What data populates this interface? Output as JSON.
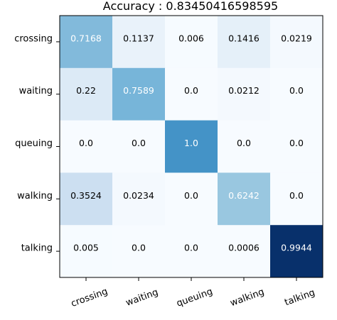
{
  "chart_data": {
    "type": "heatmap",
    "title": "Accuracy :  0.83450416598595",
    "xlabel": "",
    "ylabel": "",
    "rows": [
      "crossing",
      "waiting",
      "queuing",
      "walking",
      "talking"
    ],
    "columns": [
      "crossing",
      "waiting",
      "queuing",
      "walking",
      "talking"
    ],
    "values": [
      [
        0.7168,
        0.1137,
        0.006,
        0.1416,
        0.0219
      ],
      [
        0.22,
        0.7589,
        0.0,
        0.0212,
        0.0
      ],
      [
        0.0,
        0.0,
        1.0,
        0.0,
        0.0
      ],
      [
        0.3524,
        0.0234,
        0.0,
        0.6242,
        0.0
      ],
      [
        0.005,
        0.0,
        0.0,
        0.0006,
        0.9944
      ]
    ],
    "value_labels": [
      [
        "0.7168",
        "0.1137",
        "0.006",
        "0.1416",
        "0.0219"
      ],
      [
        "0.22",
        "0.7589",
        "0.0",
        "0.0212",
        "0.0"
      ],
      [
        "0.0",
        "0.0",
        "1.0",
        "0.0",
        "0.0"
      ],
      [
        "0.3524",
        "0.0234",
        "0.0",
        "0.6242",
        "0.0"
      ],
      [
        "0.005",
        "0.0",
        "0.0",
        "0.0006",
        "0.9944"
      ]
    ],
    "colorscale": "Blues",
    "grid": false,
    "colorbar": false
  }
}
